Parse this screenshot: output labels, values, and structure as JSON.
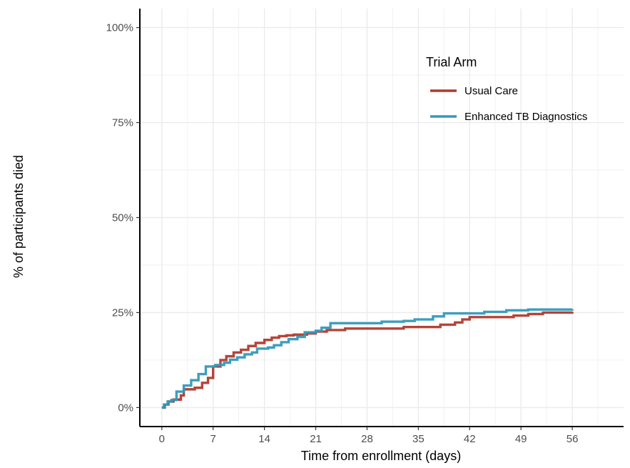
{
  "chart_data": {
    "type": "line",
    "step": true,
    "xlabel": "Time from enrollment (days)",
    "ylabel": "% of participants died",
    "xlim": [
      -3,
      63
    ],
    "ylim": [
      -5,
      105
    ],
    "x_ticks": [
      0,
      7,
      14,
      21,
      28,
      35,
      42,
      49,
      56
    ],
    "y_ticks": [
      0,
      25,
      50,
      75,
      100
    ],
    "y_tick_labels": [
      "0%",
      "25%",
      "50%",
      "75%",
      "100%"
    ],
    "grid": true,
    "legend": {
      "title": "Trial Arm",
      "placement": "top-right"
    },
    "series": [
      {
        "name": "Usual Care",
        "color": "#b03a2e",
        "points": [
          [
            0,
            0
          ],
          [
            0.4,
            0.8
          ],
          [
            0.9,
            1.6
          ],
          [
            1.6,
            2.1
          ],
          [
            2.6,
            3.2
          ],
          [
            3.0,
            4.8
          ],
          [
            4.5,
            5.2
          ],
          [
            5.5,
            6.5
          ],
          [
            6.3,
            7.8
          ],
          [
            7.0,
            10.8
          ],
          [
            8.0,
            12.5
          ],
          [
            8.8,
            13.5
          ],
          [
            9.8,
            14.5
          ],
          [
            10.8,
            15.2
          ],
          [
            11.8,
            16.2
          ],
          [
            12.8,
            17.0
          ],
          [
            14.0,
            17.8
          ],
          [
            15.0,
            18.4
          ],
          [
            16.0,
            18.8
          ],
          [
            17.0,
            19.0
          ],
          [
            18.0,
            19.2
          ],
          [
            19.8,
            19.5
          ],
          [
            21.0,
            20.0
          ],
          [
            22.5,
            20.4
          ],
          [
            25.0,
            20.8
          ],
          [
            33.0,
            21.2
          ],
          [
            38.0,
            21.8
          ],
          [
            40.0,
            22.4
          ],
          [
            41.0,
            23.2
          ],
          [
            42.0,
            23.8
          ],
          [
            48.0,
            24.2
          ],
          [
            50.0,
            24.6
          ],
          [
            52.0,
            25.0
          ],
          [
            56.0,
            25.2
          ]
        ]
      },
      {
        "name": "Enhanced TB Diagnostics",
        "color": "#3399bb",
        "points": [
          [
            0,
            0
          ],
          [
            0.3,
            0.8
          ],
          [
            0.8,
            1.6
          ],
          [
            1.3,
            2.0
          ],
          [
            2.0,
            4.2
          ],
          [
            3.0,
            5.8
          ],
          [
            4.0,
            7.2
          ],
          [
            5.0,
            8.8
          ],
          [
            6.0,
            10.8
          ],
          [
            7.3,
            11.2
          ],
          [
            8.5,
            11.8
          ],
          [
            9.3,
            12.6
          ],
          [
            10.3,
            13.2
          ],
          [
            11.3,
            14.0
          ],
          [
            12.3,
            14.5
          ],
          [
            13.0,
            15.5
          ],
          [
            14.5,
            15.8
          ],
          [
            15.3,
            16.4
          ],
          [
            16.3,
            17.2
          ],
          [
            17.3,
            18.0
          ],
          [
            18.5,
            18.6
          ],
          [
            19.5,
            19.8
          ],
          [
            21.0,
            20.2
          ],
          [
            21.8,
            21.0
          ],
          [
            23.0,
            22.2
          ],
          [
            30.0,
            22.6
          ],
          [
            33.0,
            22.8
          ],
          [
            34.5,
            23.2
          ],
          [
            37.0,
            24.0
          ],
          [
            38.5,
            24.8
          ],
          [
            44.0,
            25.2
          ],
          [
            47.0,
            25.6
          ],
          [
            50.0,
            25.8
          ],
          [
            56.0,
            25.9
          ]
        ]
      }
    ]
  }
}
